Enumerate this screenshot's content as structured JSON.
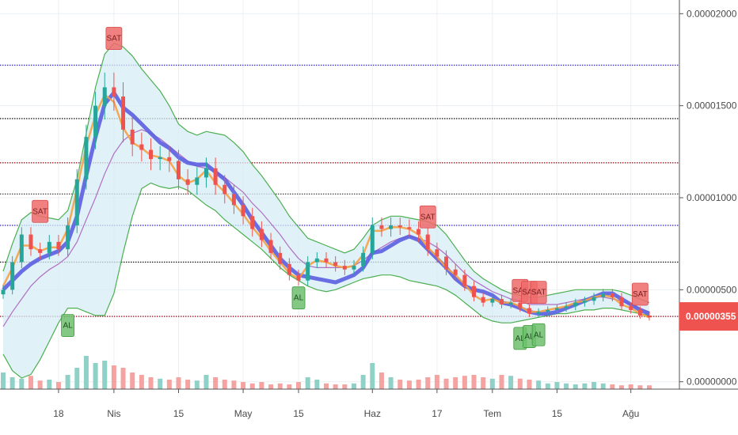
{
  "chart_data": {
    "type": "line",
    "y_axis": {
      "range": [
        -4e-07,
        2.04e-05
      ],
      "ticks": [
        {
          "value": 2e-05,
          "label": "0.00002000"
        },
        {
          "value": 1.5e-05,
          "label": "0.00001500"
        },
        {
          "value": 1e-05,
          "label": "0.00001000"
        },
        {
          "value": 5e-06,
          "label": "0.00000500"
        },
        {
          "value": 0.0,
          "label": "0.00000000"
        }
      ]
    },
    "x_axis": {
      "ticks": [
        {
          "i": 6,
          "label": "18"
        },
        {
          "i": 12,
          "label": "Nis"
        },
        {
          "i": 19,
          "label": "15"
        },
        {
          "i": 26,
          "label": "May"
        },
        {
          "i": 32,
          "label": "15"
        },
        {
          "i": 40,
          "label": "Haz"
        },
        {
          "i": 47,
          "label": "17"
        },
        {
          "i": 53,
          "label": "Tem"
        },
        {
          "i": 60,
          "label": "15"
        },
        {
          "i": 68,
          "label": "Ağu"
        }
      ]
    },
    "last_price": {
      "value": 3.55e-06,
      "label": "0.00000355"
    },
    "grid": true,
    "horizontal_levels": [
      {
        "value": 1.72e-05,
        "color": "#3f33c8"
      },
      {
        "value": 1.43e-05,
        "color": "#222222"
      },
      {
        "value": 1.19e-05,
        "color": "#a01c2c"
      },
      {
        "value": 1.02e-05,
        "color": "#555555"
      },
      {
        "value": 8.5e-06,
        "color": "#3f33c8"
      },
      {
        "value": 6.5e-06,
        "color": "#222222"
      },
      {
        "value": 3.55e-06,
        "color": "#a01c2c"
      }
    ],
    "series": [
      {
        "key": "close",
        "values": [
          5e-06,
          6.5e-06,
          8e-06,
          7.2e-06,
          7e-06,
          7.6e-06,
          7.2e-06,
          8.5e-06,
          1.1e-05,
          1.33e-05,
          1.5e-05,
          1.6e-05,
          1.55e-05,
          1.37e-05,
          1.29e-05,
          1.26e-05,
          1.21e-05,
          1.22e-05,
          1.2e-05,
          1.1e-05,
          1.07e-05,
          1.11e-05,
          1.16e-05,
          1.07e-05,
          1.02e-05,
          9.6e-06,
          9e-06,
          8.3e-06,
          7.7e-06,
          7e-06,
          6.4e-06,
          5.8e-06,
          5.5e-06,
          6.5e-06,
          6.7e-06,
          6.5e-06,
          6.3e-06,
          6.1e-06,
          6.3e-06,
          7e-06,
          8.5e-06,
          8.3e-06,
          8.5e-06,
          8.4e-06,
          8.3e-06,
          8e-06,
          7.2e-06,
          6.8e-06,
          6.1e-06,
          5.8e-06,
          5.2e-06,
          4.6e-06,
          4.3e-06,
          4.5e-06,
          4.2e-06,
          4.3e-06,
          4e-06,
          3.7e-06,
          3.8e-06,
          3.9e-06,
          4e-06,
          4.1e-06,
          4.3e-06,
          4.4e-06,
          4.6e-06,
          4.8e-06,
          4.6e-06,
          4.1e-06,
          3.9e-06,
          3.6e-06,
          3.5e-06
        ]
      },
      {
        "key": "ma_slow",
        "values": [
          5e-06,
          5.5e-06,
          6e-06,
          6.4e-06,
          6.7e-06,
          6.9e-06,
          7.1e-06,
          7.6e-06,
          9e-06,
          1.12e-05,
          1.33e-05,
          1.51e-05,
          1.57e-05,
          1.49e-05,
          1.45e-05,
          1.4e-05,
          1.35e-05,
          1.3e-05,
          1.27e-05,
          1.22e-05,
          1.19e-05,
          1.18e-05,
          1.18e-05,
          1.14e-05,
          1.1e-05,
          1.03e-05,
          9.6e-06,
          8.8e-06,
          8.1e-06,
          7.4e-06,
          6.7e-06,
          6.2e-06,
          5.8e-06,
          5.7e-06,
          5.6e-06,
          5.5e-06,
          5.4e-06,
          5.6e-06,
          5.8e-06,
          6.2e-06,
          7e-06,
          7.1e-06,
          7.4e-06,
          7.7e-06,
          7.9e-06,
          7.7e-06,
          7.2e-06,
          6.7e-06,
          6.2e-06,
          5.6e-06,
          5.2e-06,
          5e-06,
          4.9e-06,
          4.7e-06,
          4.3e-06,
          4.2e-06,
          4e-06,
          3.8e-06,
          3.7e-06,
          3.7e-06,
          3.8e-06,
          4e-06,
          4.2e-06,
          4.4e-06,
          4.6e-06,
          4.8e-06,
          4.8e-06,
          4.5e-06,
          4.2e-06,
          3.9e-06,
          3.7e-06
        ]
      },
      {
        "key": "ma_fast",
        "values": [
          5.2e-06,
          6.2e-06,
          7.4e-06,
          7.4e-06,
          7.1e-06,
          7.3e-06,
          7.3e-06,
          8.3e-06,
          1.05e-05,
          1.28e-05,
          1.45e-05,
          1.56e-05,
          1.52e-05,
          1.38e-05,
          1.3e-05,
          1.27e-05,
          1.23e-05,
          1.22e-05,
          1.2e-05,
          1.12e-05,
          1.08e-05,
          1.1e-05,
          1.15e-05,
          1.08e-05,
          1.03e-05,
          9.7e-06,
          9.1e-06,
          8.4e-06,
          7.8e-06,
          7.1e-06,
          6.5e-06,
          5.9e-06,
          5.6e-06,
          6.3e-06,
          6.6e-06,
          6.5e-06,
          6.3e-06,
          6.2e-06,
          6.3e-06,
          6.9e-06,
          8.2e-06,
          8.2e-06,
          8.4e-06,
          8.4e-06,
          8.3e-06,
          8e-06,
          7.3e-06,
          6.8e-06,
          6.2e-06,
          5.8e-06,
          5.3e-06,
          4.7e-06,
          4.4e-06,
          4.5e-06,
          4.3e-06,
          4.3e-06,
          4.1e-06,
          3.8e-06,
          3.8e-06,
          3.9e-06,
          4e-06,
          4.1e-06,
          4.3e-06,
          4.4e-06,
          4.6e-06,
          4.7e-06,
          4.6e-06,
          4.2e-06,
          4e-06,
          3.7e-06,
          3.5e-06
        ]
      },
      {
        "key": "ma_mid",
        "values": [
          3e-06,
          3.8e-06,
          4.5e-06,
          5.2e-06,
          5.7e-06,
          6.1e-06,
          6.4e-06,
          6.8e-06,
          7.6e-06,
          8.8e-06,
          1e-05,
          1.13e-05,
          1.24e-05,
          1.31e-05,
          1.35e-05,
          1.37e-05,
          1.35e-05,
          1.32e-05,
          1.28e-05,
          1.24e-05,
          1.2e-05,
          1.17e-05,
          1.16e-05,
          1.14e-05,
          1.11e-05,
          1.07e-05,
          1.03e-05,
          9.7e-06,
          9.2e-06,
          8.6e-06,
          8e-06,
          7.3e-06,
          6.7e-06,
          6.3e-06,
          6.2e-06,
          6.2e-06,
          6.2e-06,
          6.2e-06,
          6.3e-06,
          6.6e-06,
          7e-06,
          7.3e-06,
          7.6e-06,
          7.8e-06,
          7.9e-06,
          7.8e-06,
          7.6e-06,
          7.3e-06,
          6.9e-06,
          6.4e-06,
          5.9e-06,
          5.5e-06,
          5.2e-06,
          4.9e-06,
          4.7e-06,
          4.5e-06,
          4.4e-06,
          4.2e-06,
          4.2e-06,
          4.2e-06,
          4.2e-06,
          4.3e-06,
          4.4e-06,
          4.5e-06,
          4.6e-06,
          4.6e-06,
          4.5e-06,
          4.4e-06,
          4.2e-06,
          4e-06,
          3.8e-06
        ]
      },
      {
        "key": "bb_upper",
        "values": [
          6e-06,
          7.5e-06,
          8.8e-06,
          9.2e-06,
          9e-06,
          8.9e-06,
          8.8e-06,
          9.3e-06,
          1.1e-05,
          1.35e-05,
          1.6e-05,
          1.78e-05,
          1.84e-05,
          1.82e-05,
          1.77e-05,
          1.7e-05,
          1.64e-05,
          1.58e-05,
          1.5e-05,
          1.4e-05,
          1.36e-05,
          1.34e-05,
          1.36e-05,
          1.35e-05,
          1.34e-05,
          1.3e-05,
          1.25e-05,
          1.18e-05,
          1.12e-05,
          1.05e-05,
          9.8e-06,
          9e-06,
          8.4e-06,
          7.8e-06,
          7.6e-06,
          7.4e-06,
          7.2e-06,
          7e-06,
          7.2e-06,
          7.8e-06,
          8.5e-06,
          8.8e-06,
          9e-06,
          9e-06,
          8.9e-06,
          8.8e-06,
          8.7e-06,
          8.5e-06,
          8e-06,
          7.3e-06,
          6.6e-06,
          6e-06,
          5.6e-06,
          5.3e-06,
          5e-06,
          4.8e-06,
          4.7e-06,
          4.6e-06,
          4.6e-06,
          4.7e-06,
          4.8e-06,
          4.9e-06,
          5e-06,
          5e-06,
          5e-06,
          5e-06,
          5e-06,
          4.9e-06,
          4.7e-06,
          4.5e-06,
          4.3e-06
        ]
      },
      {
        "key": "bb_lower",
        "values": [
          1.5e-06,
          6e-07,
          2e-07,
          4e-07,
          1.2e-06,
          2.2e-06,
          3.2e-06,
          4e-06,
          4e-06,
          3.8e-06,
          3.6e-06,
          3.6e-06,
          4.8e-06,
          7e-06,
          9e-06,
          1.05e-05,
          1.08e-05,
          1.06e-05,
          1.05e-05,
          1.06e-05,
          1.04e-05,
          1e-05,
          9.6e-06,
          9.3e-06,
          8.8e-06,
          8.4e-06,
          8e-06,
          7.6e-06,
          7.2e-06,
          6.7e-06,
          6.2e-06,
          5.8e-06,
          5.5e-06,
          5.2e-06,
          5e-06,
          4.9e-06,
          5e-06,
          5.2e-06,
          5.4e-06,
          5.6e-06,
          5.7e-06,
          5.8e-06,
          5.8e-06,
          5.7e-06,
          5.5e-06,
          5.4e-06,
          5.3e-06,
          5.2e-06,
          5e-06,
          4.7e-06,
          4.3e-06,
          3.9e-06,
          3.5e-06,
          3.3e-06,
          3.2e-06,
          3.2e-06,
          3.3e-06,
          3.4e-06,
          3.5e-06,
          3.6e-06,
          3.7e-06,
          3.7e-06,
          3.8e-06,
          3.9e-06,
          3.9e-06,
          4e-06,
          4e-06,
          3.9e-06,
          3.8e-06,
          3.7e-06,
          3.6e-06
        ]
      },
      {
        "key": "volume",
        "values": [
          0.35,
          0.25,
          0.22,
          0.28,
          0.18,
          0.2,
          0.15,
          0.3,
          0.45,
          0.7,
          0.55,
          0.6,
          0.5,
          0.45,
          0.35,
          0.3,
          0.25,
          0.22,
          0.2,
          0.25,
          0.2,
          0.18,
          0.3,
          0.25,
          0.2,
          0.18,
          0.15,
          0.12,
          0.15,
          0.1,
          0.12,
          0.1,
          0.15,
          0.25,
          0.2,
          0.12,
          0.1,
          0.1,
          0.12,
          0.3,
          0.55,
          0.35,
          0.25,
          0.2,
          0.18,
          0.2,
          0.25,
          0.3,
          0.22,
          0.25,
          0.28,
          0.3,
          0.25,
          0.22,
          0.3,
          0.28,
          0.22,
          0.2,
          0.18,
          0.12,
          0.15,
          0.12,
          0.1,
          0.12,
          0.15,
          0.12,
          0.1,
          0.08,
          0.1,
          0.08,
          0.08
        ]
      }
    ],
    "signals": [
      {
        "i": 4,
        "label": "SAT",
        "type": "sell"
      },
      {
        "i": 7,
        "label": "AL",
        "type": "buy"
      },
      {
        "i": 12,
        "label": "SAT",
        "type": "sell"
      },
      {
        "i": 32,
        "label": "AL",
        "type": "buy"
      },
      {
        "i": 46,
        "label": "SAT",
        "type": "sell"
      },
      {
        "i": 56,
        "label": "SAT",
        "type": "sell"
      },
      {
        "i": 56,
        "label": "AL",
        "type": "buy"
      },
      {
        "i": 57,
        "label": "SAT",
        "type": "sell"
      },
      {
        "i": 57,
        "label": "AL",
        "type": "buy"
      },
      {
        "i": 58,
        "label": "SAT",
        "type": "sell"
      },
      {
        "i": 58,
        "label": "AL",
        "type": "buy"
      },
      {
        "i": 69,
        "label": "SAT",
        "type": "sell"
      }
    ]
  },
  "colors": {
    "band_fill": "#d6ecf6",
    "band_line": "#4caf50",
    "ma_slow": "#5b5ee0",
    "ma_fast": "#f5a142",
    "ma_mid": "#b06fc4",
    "up": "#26a69a",
    "down": "#ef5350",
    "vol_up": "#8fd0c7",
    "vol_down": "#f4a3a1",
    "sell_fill": "#ef6b6b",
    "buy_fill": "#6dbf6d",
    "price_tag": "#ef5350"
  }
}
